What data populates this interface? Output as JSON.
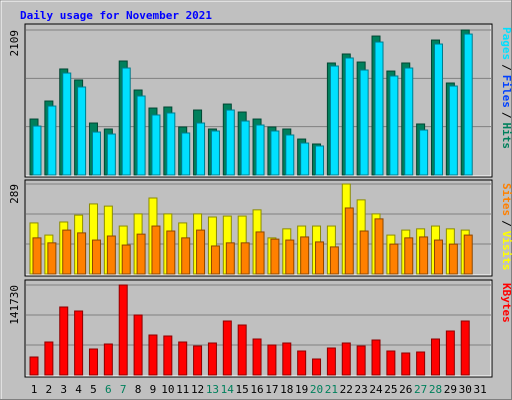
{
  "title": "Daily usage for November 2021",
  "separator": "/",
  "chart_data": [
    {
      "type": "bar",
      "ylim": [
        0,
        2109
      ],
      "yticks": [
        2109
      ],
      "series": [
        {
          "name": "Hits",
          "color": "#00805C",
          "values": [
            814,
            1076,
            1542,
            1382,
            756,
            669,
            1658,
            1236,
            974,
            989,
            698,
            945,
            669,
            1032,
            916,
            814,
            698,
            669,
            523,
            451,
            1629,
            1760,
            1643,
            2021,
            1512,
            1629,
            742,
            1963,
            1338,
            2109,
            null
          ]
        },
        {
          "name": "Files",
          "color": "#0040FF"
        },
        {
          "name": "Pages",
          "color": "#00E0FF",
          "values": [
            712,
            1003,
            1483,
            1280,
            625,
            596,
            1556,
            1149,
            873,
            902,
            611,
            756,
            640,
            945,
            785,
            727,
            640,
            582,
            465,
            422,
            1585,
            1702,
            1527,
            1934,
            1440,
            1556,
            654,
            1905,
            1294,
            2050,
            null
          ]
        }
      ]
    },
    {
      "type": "bar",
      "ylim": [
        0,
        289
      ],
      "yticks": [
        289
      ],
      "series": [
        {
          "name": "Visits",
          "color": "#FFFF00",
          "values": [
            164,
            125,
            167,
            189,
            225,
            218,
            154,
            193,
            244,
            193,
            164,
            193,
            183,
            186,
            186,
            206,
            116,
            145,
            154,
            154,
            154,
            289,
            238,
            193,
            125,
            141,
            145,
            154,
            145,
            141,
            null
          ]
        },
        {
          "name": "Sites",
          "color": "#FF8000",
          "values": [
            116,
            100,
            141,
            132,
            109,
            122,
            93,
            128,
            154,
            138,
            116,
            141,
            90,
            100,
            100,
            135,
            112,
            109,
            119,
            103,
            87,
            212,
            138,
            177,
            96,
            116,
            119,
            109,
            96,
            125,
            null
          ]
        }
      ]
    },
    {
      "type": "bar",
      "ylim": [
        0,
        141730
      ],
      "yticks": [
        141730
      ],
      "categories": [
        "1",
        "2",
        "3",
        "4",
        "5",
        "6",
        "7",
        "8",
        "9",
        "10",
        "11",
        "12",
        "13",
        "14",
        "15",
        "16",
        "17",
        "18",
        "19",
        "20",
        "21",
        "22",
        "23",
        "24",
        "25",
        "26",
        "27",
        "28",
        "29",
        "30",
        "31"
      ],
      "category_colors": [
        "#000000",
        "#000000",
        "#000000",
        "#000000",
        "#000000",
        "#00805C",
        "#00805C",
        "#000000",
        "#000000",
        "#000000",
        "#000000",
        "#000000",
        "#00805C",
        "#00805C",
        "#000000",
        "#000000",
        "#000000",
        "#000000",
        "#000000",
        "#00805C",
        "#00805C",
        "#000000",
        "#000000",
        "#000000",
        "#000000",
        "#000000",
        "#00805C",
        "#00805C",
        "#000000",
        "#000000",
        "#000000"
      ],
      "series": [
        {
          "name": "KBytes",
          "color": "#FF0000",
          "values": [
            28346,
            51966,
            107085,
            100789,
            40944,
            48819,
            141730,
            94487,
            62991,
            61417,
            51966,
            45668,
            50393,
            85038,
            78740,
            56692,
            47244,
            50393,
            37795,
            25197,
            42519,
            50393,
            45668,
            55118,
            37795,
            34646,
            36220,
            56692,
            69291,
            85038,
            null
          ]
        }
      ]
    }
  ]
}
